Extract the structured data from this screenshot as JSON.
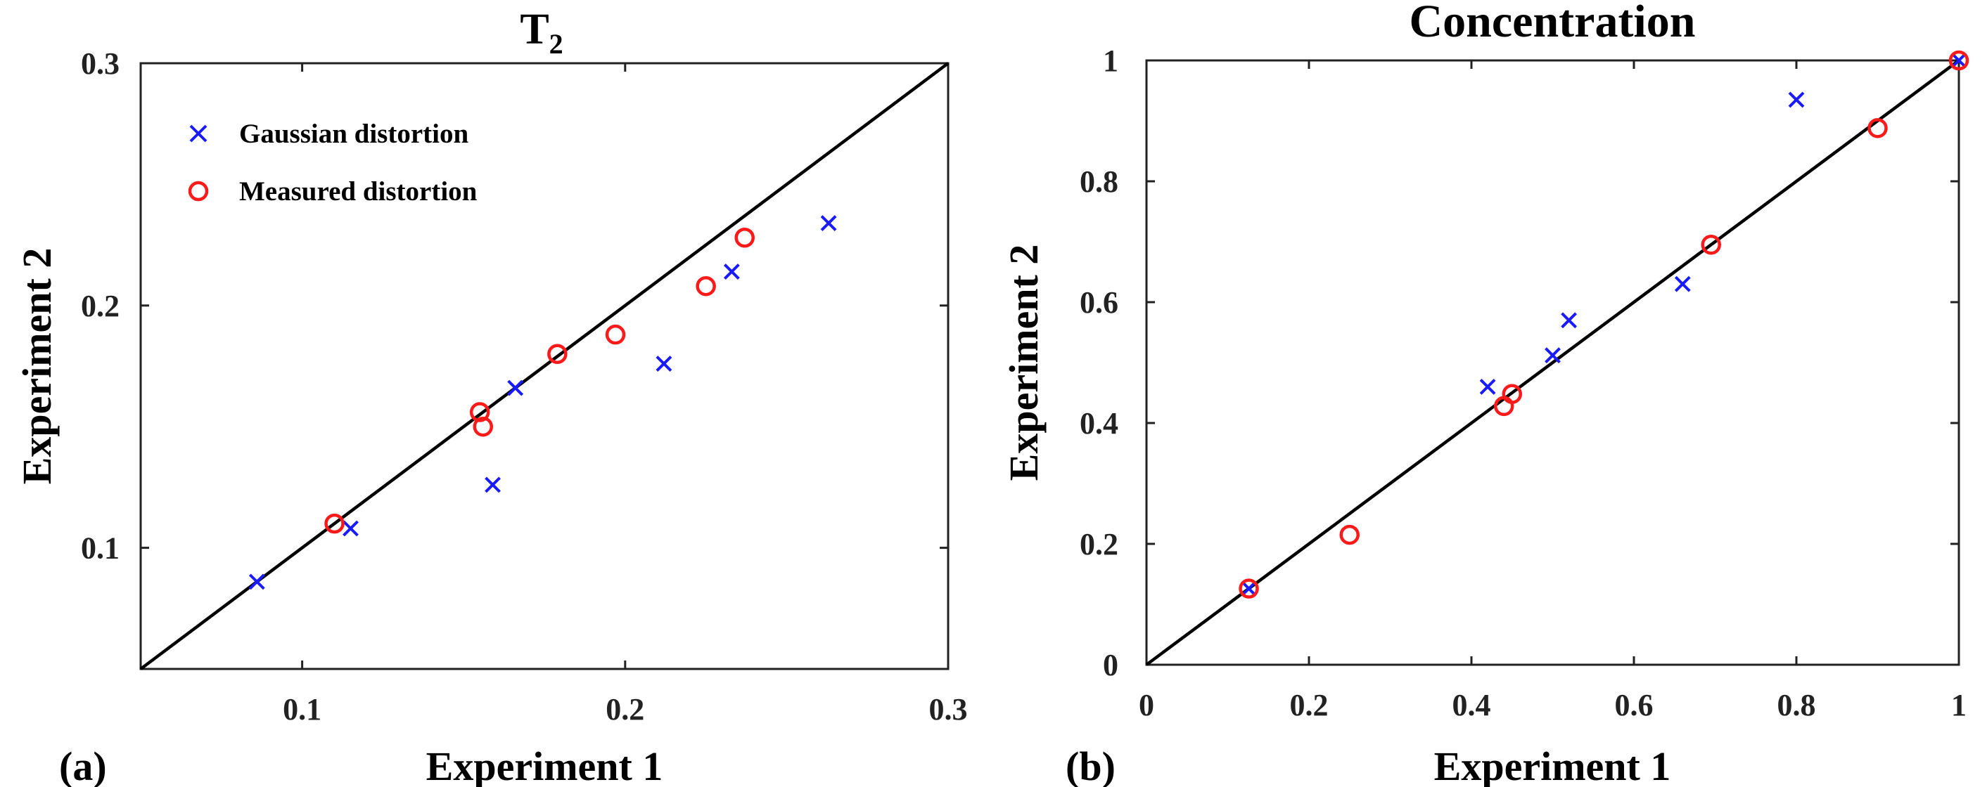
{
  "chart_data": [
    {
      "type": "scatter",
      "panel_label": "(a)",
      "title": "T",
      "title_subscript": "2",
      "xlabel": "Experiment 1",
      "ylabel": "Experiment 2",
      "xlim": [
        0.05,
        0.3
      ],
      "ylim": [
        0.05,
        0.3
      ],
      "xticks": [
        0.1,
        0.2,
        0.3
      ],
      "yticks": [
        0.1,
        0.2,
        0.3
      ],
      "tick_labels_x": [
        "0.1",
        "0.2",
        "0.3"
      ],
      "tick_labels_y": [
        "0.1",
        "0.2",
        "0.3"
      ],
      "grid": false,
      "legend_position": "top-left",
      "identity_line": {
        "from": [
          0.05,
          0.05
        ],
        "to": [
          0.3,
          0.3
        ]
      },
      "series": [
        {
          "name": "Gaussian distortion",
          "marker": "x",
          "color": "#1a1aff",
          "points": [
            [
              0.086,
              0.086
            ],
            [
              0.115,
              0.108
            ],
            [
              0.159,
              0.126
            ],
            [
              0.166,
              0.166
            ],
            [
              0.212,
              0.176
            ],
            [
              0.233,
              0.214
            ],
            [
              0.263,
              0.234
            ]
          ]
        },
        {
          "name": "Measured distortion",
          "marker": "o",
          "color": "#ff1a1a",
          "points": [
            [
              0.11,
              0.11
            ],
            [
              0.155,
              0.156
            ],
            [
              0.156,
              0.15
            ],
            [
              0.179,
              0.18
            ],
            [
              0.197,
              0.188
            ],
            [
              0.225,
              0.208
            ],
            [
              0.237,
              0.228
            ]
          ]
        }
      ]
    },
    {
      "type": "scatter",
      "panel_label": "(b)",
      "title": "Concentration",
      "xlabel": "Experiment 1",
      "ylabel": "Experiment 2",
      "xlim": [
        0,
        1
      ],
      "ylim": [
        0,
        1
      ],
      "xticks": [
        0,
        0.2,
        0.4,
        0.6,
        0.8,
        1
      ],
      "yticks": [
        0,
        0.2,
        0.4,
        0.6,
        0.8,
        1
      ],
      "tick_labels_x": [
        "0",
        "0.2",
        "0.4",
        "0.6",
        "0.8",
        "1"
      ],
      "tick_labels_y": [
        "0",
        "0.2",
        "0.4",
        "0.6",
        "0.8",
        "1"
      ],
      "grid": false,
      "identity_line": {
        "from": [
          0,
          0
        ],
        "to": [
          1,
          1
        ]
      },
      "series": [
        {
          "name": "Gaussian distortion",
          "marker": "x",
          "color": "#1a1aff",
          "points": [
            [
              0.126,
              0.126
            ],
            [
              0.42,
              0.46
            ],
            [
              0.5,
              0.512
            ],
            [
              0.52,
              0.57
            ],
            [
              0.66,
              0.63
            ],
            [
              0.8,
              0.935
            ],
            [
              1.0,
              1.0
            ]
          ]
        },
        {
          "name": "Measured distortion",
          "marker": "o",
          "color": "#ff1a1a",
          "points": [
            [
              0.126,
              0.126
            ],
            [
              0.25,
              0.215
            ],
            [
              0.44,
              0.428
            ],
            [
              0.45,
              0.448
            ],
            [
              0.695,
              0.695
            ],
            [
              0.9,
              0.888
            ],
            [
              1.0,
              1.0
            ]
          ]
        }
      ]
    }
  ]
}
